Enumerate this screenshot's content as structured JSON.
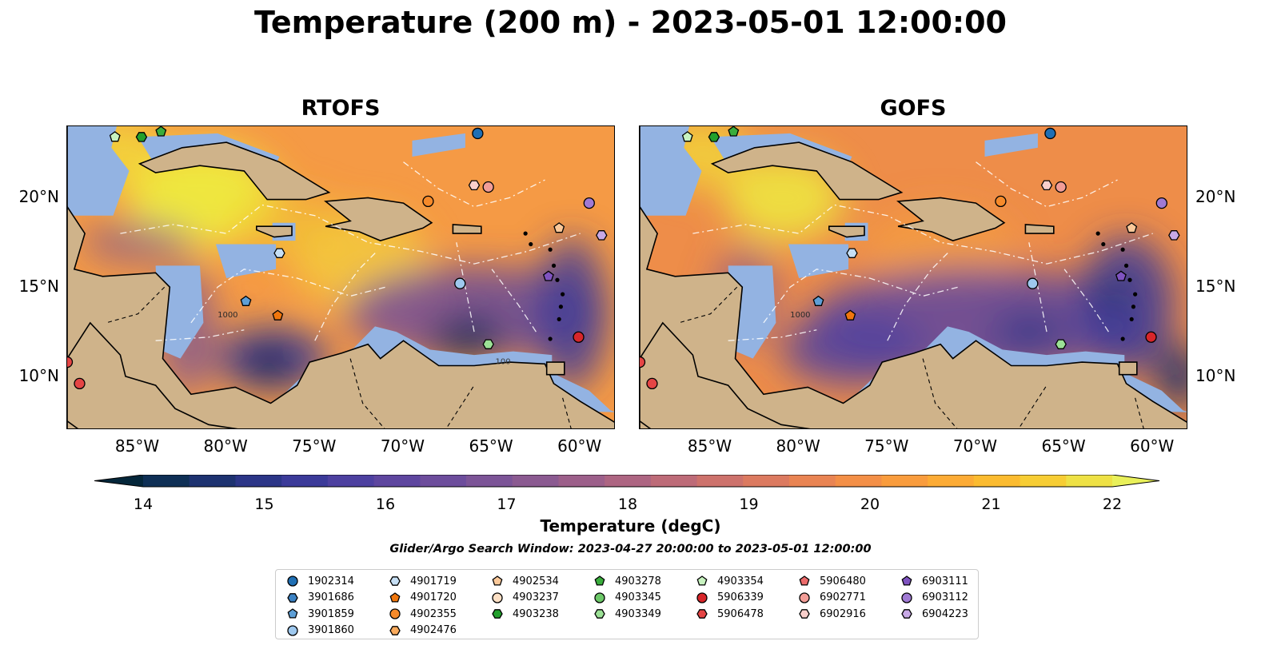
{
  "title": "Temperature (200 m) - 2023-05-01 12:00:00",
  "panels": [
    {
      "title": "RTOFS",
      "variant": "rtofs"
    },
    {
      "title": "GOFS",
      "variant": "gofs"
    }
  ],
  "lon_labels": [
    "85°W",
    "80°W",
    "75°W",
    "70°W",
    "65°W",
    "60°W"
  ],
  "lat_labels": [
    "20°N",
    "15°N",
    "10°N"
  ],
  "map_extent": {
    "lon": [
      -89,
      -58
    ],
    "lat": [
      7,
      24
    ]
  },
  "contour_labels": [
    "1000",
    "100"
  ],
  "colorbar": {
    "label": "Temperature (degC)",
    "ticks": [
      "14",
      "15",
      "16",
      "17",
      "18",
      "19",
      "20",
      "21",
      "22"
    ],
    "range": [
      14,
      22
    ],
    "extend": "both",
    "colors": [
      "#04263a",
      "#0e2f55",
      "#1d3270",
      "#2b3587",
      "#3b3a99",
      "#4d40a0",
      "#5e469f",
      "#6d4d9c",
      "#7c5497",
      "#8b5a91",
      "#9c5f8a",
      "#ad6582",
      "#bd6b78",
      "#cd726c",
      "#dc7a60",
      "#e98453",
      "#f38f47",
      "#f99c3d",
      "#fcab35",
      "#fbbb30",
      "#f7cd34",
      "#eee145",
      "#e9f05a"
    ]
  },
  "search_window": "Glider/Argo Search Window: 2023-04-27 20:00:00 to 2023-05-01 12:00:00",
  "colors": {
    "land": "#cfb38a",
    "shelf": "#93b3e2",
    "deep": "#f59a45"
  },
  "legend": [
    {
      "label": "1902314",
      "marker": "circle",
      "color": "#1f6fb4"
    },
    {
      "label": "3901686",
      "marker": "hexagon",
      "color": "#3b82c4"
    },
    {
      "label": "3901859",
      "marker": "pentagon",
      "color": "#5e9fd6"
    },
    {
      "label": "3901860",
      "marker": "circle",
      "color": "#9ec8ee"
    },
    {
      "label": "4901719",
      "marker": "hexagon",
      "color": "#c6dff5"
    },
    {
      "label": "4901720",
      "marker": "pentagon",
      "color": "#f0760d"
    },
    {
      "label": "4902355",
      "marker": "circle",
      "color": "#f68a2a"
    },
    {
      "label": "4902476",
      "marker": "hexagon",
      "color": "#f9aa5c"
    },
    {
      "label": "4902534",
      "marker": "pentagon",
      "color": "#fbc99a"
    },
    {
      "label": "4903237",
      "marker": "circle",
      "color": "#fde0c5"
    },
    {
      "label": "4903238",
      "marker": "hexagon",
      "color": "#22a02c"
    },
    {
      "label": "4903278",
      "marker": "pentagon",
      "color": "#3aad3c"
    },
    {
      "label": "4903345",
      "marker": "circle",
      "color": "#6cc868"
    },
    {
      "label": "4903349",
      "marker": "hexagon",
      "color": "#9ce196"
    },
    {
      "label": "4903354",
      "marker": "pentagon",
      "color": "#c8f3c0"
    },
    {
      "label": "5906339",
      "marker": "circle",
      "color": "#d8262a"
    },
    {
      "label": "5906478",
      "marker": "hexagon",
      "color": "#e54545"
    },
    {
      "label": "5906480",
      "marker": "pentagon",
      "color": "#ec6b6b"
    },
    {
      "label": "6902771",
      "marker": "circle",
      "color": "#f29d97"
    },
    {
      "label": "6902916",
      "marker": "hexagon",
      "color": "#f9cfcb"
    },
    {
      "label": "6903111",
      "marker": "pentagon",
      "color": "#7f53c0"
    },
    {
      "label": "6903112",
      "marker": "circle",
      "color": "#a07ad4"
    },
    {
      "label": "6904223",
      "marker": "hexagon",
      "color": "#c8a9e6"
    }
  ]
}
